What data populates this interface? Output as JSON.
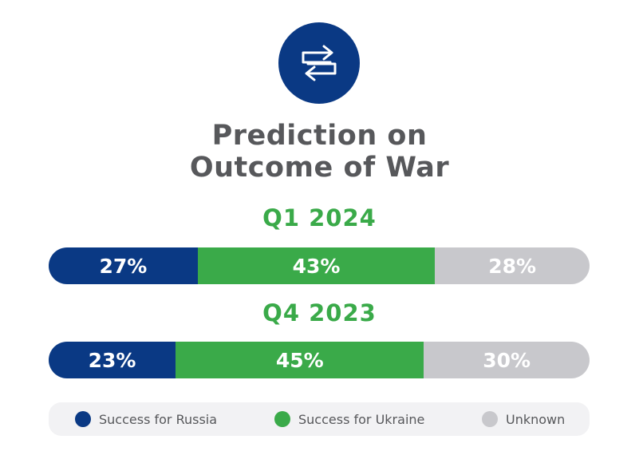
{
  "title_line1": "Prediction on",
  "title_line2": "Outcome of War",
  "icon": "swap-arrows-icon",
  "colors": {
    "russia": "#0a3984",
    "ukraine": "#3aaa49",
    "unknown": "#c8c8cc",
    "title": "#57585b",
    "period": "#3aaa49",
    "legend_bg": "#f2f2f4"
  },
  "chart_data": {
    "type": "bar",
    "orientation": "horizontal-stacked",
    "categories": [
      "Q1 2024",
      "Q4 2023"
    ],
    "series": [
      {
        "name": "Success for Russia",
        "values": [
          27,
          23
        ],
        "labels": [
          "27%",
          "23%"
        ]
      },
      {
        "name": "Success for Ukraine",
        "values": [
          43,
          45
        ],
        "labels": [
          "43%",
          "45%"
        ]
      },
      {
        "name": "Unknown",
        "values": [
          28,
          30
        ],
        "labels": [
          "28%",
          "30%"
        ]
      }
    ],
    "legend_placement": "bottom"
  }
}
